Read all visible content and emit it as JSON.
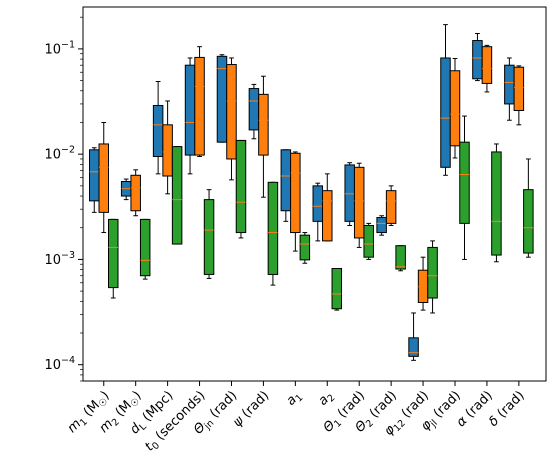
{
  "chart_data": {
    "type": "box",
    "yscale": "log",
    "ylim": [
      7e-05,
      0.25
    ],
    "yticks": [
      {
        "value": 0.0001,
        "base": "10",
        "exp": "−4"
      },
      {
        "value": 0.001,
        "base": "10",
        "exp": "−3"
      },
      {
        "value": 0.01,
        "base": "10",
        "exp": "−2"
      },
      {
        "value": 0.1,
        "base": "10",
        "exp": "−1"
      }
    ],
    "categories": [
      "m1 (M☉)",
      "m2 (M☉)",
      "dL (Mpc)",
      "t0 (seconds)",
      "Θjn (rad)",
      "ψ (rad)",
      "a1",
      "a2",
      "Θ1 (rad)",
      "Θ2 (rad)",
      "φ12 (rad)",
      "φjl (rad)",
      "α (rad)",
      "δ (rad)"
    ],
    "category_labels": [
      {
        "sym": "m",
        "sub": "1",
        "unit": " (M",
        "unitsub": "☉",
        "close": ")"
      },
      {
        "sym": "m",
        "sub": "2",
        "unit": " (M",
        "unitsub": "☉",
        "close": ")"
      },
      {
        "sym": "d",
        "sub": "L",
        "unit": " (Mpc)",
        "unitsub": "",
        "close": ""
      },
      {
        "sym": "t",
        "sub": "0",
        "unit": " (seconds)",
        "unitsub": "",
        "close": ""
      },
      {
        "sym": "Θ",
        "sub": "jn",
        "unit": " (rad)",
        "unitsub": "",
        "close": ""
      },
      {
        "sym": "ψ",
        "sub": "",
        "unit": " (rad)",
        "unitsub": "",
        "close": ""
      },
      {
        "sym": "a",
        "sub": "1",
        "unit": "",
        "unitsub": "",
        "close": ""
      },
      {
        "sym": "a",
        "sub": "2",
        "unit": "",
        "unitsub": "",
        "close": ""
      },
      {
        "sym": "Θ",
        "sub": "1",
        "unit": " (rad)",
        "unitsub": "",
        "close": ""
      },
      {
        "sym": "Θ",
        "sub": "2",
        "unit": " (rad)",
        "unitsub": "",
        "close": ""
      },
      {
        "sym": "φ",
        "sub": "12",
        "unit": " (rad)",
        "unitsub": "",
        "close": ""
      },
      {
        "sym": "φ",
        "sub": "jl",
        "unit": " (rad)",
        "unitsub": "",
        "close": ""
      },
      {
        "sym": "α",
        "sub": "",
        "unit": " (rad)",
        "unitsub": "",
        "close": ""
      },
      {
        "sym": "δ",
        "sub": "",
        "unit": " (rad)",
        "unitsub": "",
        "close": ""
      }
    ],
    "series": [
      {
        "color": "#1f77b4",
        "boxes": [
          {
            "min": 0.0028,
            "q1": 0.0036,
            "median": 0.0068,
            "q3": 0.011,
            "max": 0.0115
          },
          {
            "min": 0.0037,
            "q1": 0.004,
            "median": 0.0047,
            "q3": 0.0055,
            "max": 0.0058
          },
          {
            "min": 0.0065,
            "q1": 0.0095,
            "median": 0.019,
            "q3": 0.029,
            "max": 0.049
          },
          {
            "min": 0.0065,
            "q1": 0.0098,
            "median": 0.02,
            "q3": 0.07,
            "max": 0.082
          },
          {
            "min": 0.013,
            "q1": 0.013,
            "median": 0.065,
            "q3": 0.085,
            "max": 0.088
          },
          {
            "min": 0.014,
            "q1": 0.017,
            "median": 0.032,
            "q3": 0.042,
            "max": 0.046
          },
          {
            "min": 0.0023,
            "q1": 0.0029,
            "median": 0.0062,
            "q3": 0.011,
            "max": 0.011
          },
          {
            "min": 0.0015,
            "q1": 0.0023,
            "median": 0.0032,
            "q3": 0.005,
            "max": 0.0053
          },
          {
            "min": 0.0021,
            "q1": 0.0023,
            "median": 0.0042,
            "q3": 0.0079,
            "max": 0.0083
          },
          {
            "min": 0.0017,
            "q1": 0.0018,
            "median": 0.0022,
            "q3": 0.0025,
            "max": 0.0026
          },
          {
            "min": 0.00011,
            "q1": 0.00012,
            "median": 0.00013,
            "q3": 0.00018,
            "max": 0.00031
          },
          {
            "min": 0.0063,
            "q1": 0.0075,
            "median": 0.022,
            "q3": 0.082,
            "max": 0.17
          },
          {
            "min": 0.05,
            "q1": 0.052,
            "median": 0.082,
            "q3": 0.12,
            "max": 0.14
          },
          {
            "min": 0.021,
            "q1": 0.03,
            "median": 0.048,
            "q3": 0.07,
            "max": 0.082
          }
        ]
      },
      {
        "color": "#ff7f0e",
        "boxes": [
          {
            "min": 0.0018,
            "q1": 0.0028,
            "median": 0.0075,
            "q3": 0.0125,
            "max": 0.02
          },
          {
            "min": 0.0026,
            "q1": 0.0029,
            "median": 0.0048,
            "q3": 0.0063,
            "max": 0.0071
          },
          {
            "min": 0.0042,
            "q1": 0.0062,
            "median": 0.0105,
            "q3": 0.019,
            "max": 0.032
          },
          {
            "min": 0.0095,
            "q1": 0.0098,
            "median": 0.044,
            "q3": 0.083,
            "max": 0.105
          },
          {
            "min": 0.0057,
            "q1": 0.009,
            "median": 0.032,
            "q3": 0.071,
            "max": 0.082
          },
          {
            "min": 0.0039,
            "q1": 0.0098,
            "median": 0.021,
            "q3": 0.037,
            "max": 0.055
          },
          {
            "min": 0.0012,
            "q1": 0.0018,
            "median": 0.0066,
            "q3": 0.0102,
            "max": 0.0105
          },
          {
            "min": 0.0015,
            "q1": 0.0015,
            "median": 0.0036,
            "q3": 0.0045,
            "max": 0.0065
          },
          {
            "min": 0.0013,
            "q1": 0.0016,
            "median": 0.0036,
            "q3": 0.0075,
            "max": 0.0082
          },
          {
            "min": 0.0021,
            "q1": 0.0022,
            "median": 0.0036,
            "q3": 0.0045,
            "max": 0.005
          },
          {
            "min": 0.00033,
            "q1": 0.00039,
            "median": 0.00055,
            "q3": 0.00079,
            "max": 0.00105
          },
          {
            "min": 0.0092,
            "q1": 0.012,
            "median": 0.024,
            "q3": 0.062,
            "max": 0.081
          },
          {
            "min": 0.039,
            "q1": 0.047,
            "median": 0.065,
            "q3": 0.105,
            "max": 0.108
          },
          {
            "min": 0.019,
            "q1": 0.026,
            "median": 0.043,
            "q3": 0.067,
            "max": 0.069
          }
        ]
      },
      {
        "color": "#2ca02c",
        "boxes": [
          {
            "min": 0.00043,
            "q1": 0.00054,
            "median": 0.0013,
            "q3": 0.0024,
            "max": 0.0024
          },
          {
            "min": 0.00065,
            "q1": 0.0007,
            "median": 0.00098,
            "q3": 0.0024,
            "max": 0.0024
          },
          {
            "min": 0.0014,
            "q1": 0.0014,
            "median": 0.0037,
            "q3": 0.0118,
            "max": 0.0118
          },
          {
            "min": 0.00066,
            "q1": 0.00072,
            "median": 0.0019,
            "q3": 0.0037,
            "max": 0.0046
          },
          {
            "min": 0.0016,
            "q1": 0.0018,
            "median": 0.0035,
            "q3": 0.0135,
            "max": 0.0135
          },
          {
            "min": 0.00057,
            "q1": 0.00072,
            "median": 0.0018,
            "q3": 0.0054,
            "max": 0.0054
          },
          {
            "min": 0.00092,
            "q1": 0.00099,
            "median": 0.0014,
            "q3": 0.0017,
            "max": 0.0018
          },
          {
            "min": 0.00033,
            "q1": 0.00034,
            "median": 0.00047,
            "q3": 0.00082,
            "max": 0.00082
          },
          {
            "min": 0.001,
            "q1": 0.00105,
            "median": 0.0014,
            "q3": 0.0021,
            "max": 0.0022
          },
          {
            "min": 0.00078,
            "q1": 0.00081,
            "median": 0.00085,
            "q3": 0.00135,
            "max": 0.00135
          },
          {
            "min": 0.00031,
            "q1": 0.00043,
            "median": 0.0007,
            "q3": 0.0013,
            "max": 0.0015
          },
          {
            "min": 0.001,
            "q1": 0.0022,
            "median": 0.0064,
            "q3": 0.013,
            "max": 0.023
          },
          {
            "min": 0.00095,
            "q1": 0.0011,
            "median": 0.0023,
            "q3": 0.0105,
            "max": 0.0125
          },
          {
            "min": 0.00105,
            "q1": 0.00115,
            "median": 0.002,
            "q3": 0.0046,
            "max": 0.009
          }
        ]
      }
    ]
  }
}
